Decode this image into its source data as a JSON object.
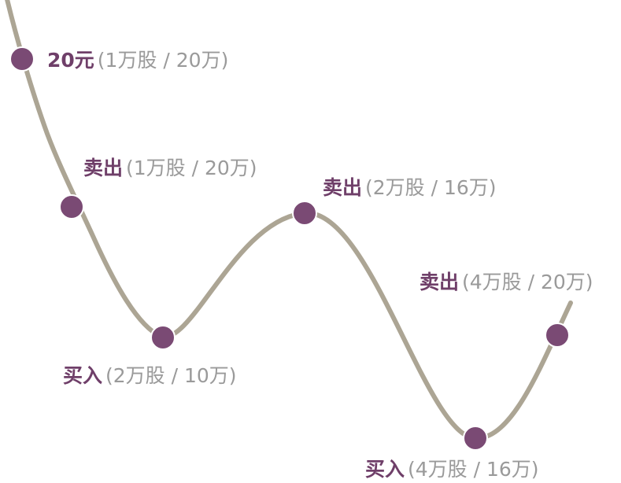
{
  "colors": {
    "curve": "#aca594",
    "point": "#7a4a74",
    "label_main": "#6f3f69",
    "label_note": "#9a9a9a",
    "background": "#ffffff"
  },
  "points": [
    {
      "id": "p1",
      "action": "20元",
      "detail": "(1万股 / 20万)"
    },
    {
      "id": "p2",
      "action": "卖出",
      "detail": "(1万股 / 20万)"
    },
    {
      "id": "p3",
      "action": "买入",
      "detail": "(2万股 / 10万)"
    },
    {
      "id": "p4",
      "action": "卖出",
      "detail": "(2万股 / 16万)"
    },
    {
      "id": "p5",
      "action": "买入",
      "detail": "(4万股 / 16万)"
    },
    {
      "id": "p6",
      "action": "卖出",
      "detail": "(4万股 / 20万)"
    }
  ]
}
